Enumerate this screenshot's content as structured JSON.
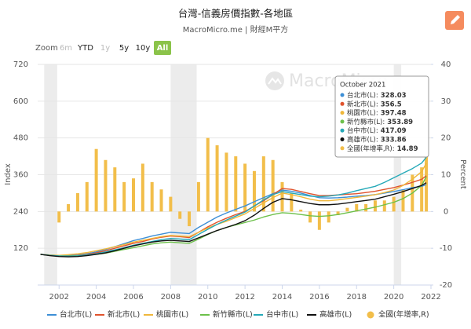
{
  "chart_data": {
    "type": "line",
    "title": "台灣-信義房價指數-各地區",
    "subtitle": "MacroMicro.me | 財經M平方",
    "watermark": "MacroMicro",
    "range_selector": {
      "label": "Zoom",
      "buttons": [
        "6m",
        "YTD",
        "1y",
        "5y",
        "10y",
        "All"
      ],
      "selected": "All",
      "disabled": [
        "6m",
        "1y"
      ]
    },
    "ylabel": "Index",
    "y2label": "Percent",
    "xlim": [
      2000.85,
      2022
    ],
    "xticks": [
      2002,
      2004,
      2006,
      2008,
      2010,
      2012,
      2014,
      2016,
      2018,
      2020,
      2022
    ],
    "ylim": [
      0,
      720
    ],
    "yticks": [
      120,
      240,
      360,
      480,
      600,
      720
    ],
    "y2lim": [
      -20,
      40
    ],
    "y2ticks": [
      -20,
      -10,
      0,
      10,
      20,
      30,
      40
    ],
    "grid": true,
    "legend": "bottom",
    "plot_bands": [
      [
        2001.2,
        2001.9
      ],
      [
        2008.0,
        2009.4
      ],
      [
        2020.0,
        2020.4
      ]
    ],
    "x": [
      2001,
      2001.5,
      2002,
      2002.5,
      2003,
      2003.5,
      2004,
      2004.5,
      2005,
      2005.5,
      2006,
      2006.5,
      2007,
      2007.5,
      2008,
      2008.5,
      2009,
      2009.5,
      2010,
      2010.5,
      2011,
      2011.5,
      2012,
      2012.5,
      2013,
      2013.5,
      2014,
      2014.5,
      2015,
      2015.5,
      2016,
      2016.5,
      2017,
      2017.5,
      2018,
      2018.5,
      2019,
      2019.5,
      2020,
      2020.5,
      2021,
      2021.5,
      2021.75
    ],
    "series": [
      {
        "name": "台北市(L)",
        "color": "#3d8fd6",
        "values": [
          100,
          98,
          96,
          97,
          98,
          102,
          108,
          116,
          125,
          135,
          145,
          152,
          160,
          166,
          172,
          170,
          168,
          188,
          205,
          222,
          235,
          247,
          258,
          272,
          285,
          298,
          310,
          306,
          300,
          292,
          285,
          284,
          285,
          287,
          290,
          292,
          295,
          300,
          305,
          311,
          318,
          322,
          328.03
        ]
      },
      {
        "name": "新北市(L)",
        "color": "#e0532d",
        "values": [
          100,
          97,
          94,
          95,
          97,
          100,
          105,
          112,
          120,
          128,
          136,
          142,
          150,
          156,
          160,
          158,
          155,
          172,
          190,
          205,
          218,
          230,
          240,
          258,
          275,
          295,
          315,
          312,
          305,
          298,
          292,
          292,
          294,
          296,
          298,
          302,
          306,
          312,
          318,
          326,
          335,
          345,
          356.5
        ]
      },
      {
        "name": "桃園市(L)",
        "color": "#efb73b",
        "values": [
          100,
          98,
          97,
          99,
          102,
          106,
          112,
          118,
          125,
          132,
          140,
          146,
          152,
          158,
          162,
          160,
          158,
          172,
          186,
          198,
          208,
          220,
          232,
          250,
          268,
          285,
          300,
          295,
          288,
          280,
          275,
          275,
          278,
          282,
          286,
          290,
          295,
          302,
          310,
          325,
          345,
          370,
          397.48
        ]
      },
      {
        "name": "新竹縣市(L)",
        "color": "#6cc04a",
        "values": [
          100,
          97,
          95,
          95,
          96,
          98,
          100,
          104,
          110,
          116,
          122,
          128,
          134,
          138,
          140,
          138,
          136,
          150,
          165,
          178,
          188,
          196,
          204,
          212,
          222,
          230,
          236,
          234,
          230,
          226,
          224,
          226,
          230,
          236,
          242,
          248,
          254,
          262,
          270,
          282,
          300,
          325,
          353.89
        ]
      },
      {
        "name": "台中市(L)",
        "color": "#25a9b8",
        "values": [
          100,
          97,
          95,
          94,
          95,
          98,
          102,
          108,
          115,
          122,
          130,
          136,
          142,
          148,
          152,
          150,
          148,
          165,
          182,
          198,
          212,
          225,
          238,
          258,
          278,
          295,
          305,
          300,
          295,
          290,
          288,
          290,
          294,
          300,
          308,
          315,
          322,
          335,
          350,
          365,
          380,
          398,
          417.09
        ]
      },
      {
        "name": "高雄市(L)",
        "color": "#111111",
        "values": [
          100,
          96,
          93,
          92,
          93,
          96,
          100,
          105,
          112,
          120,
          128,
          134,
          140,
          144,
          146,
          144,
          142,
          154,
          166,
          178,
          188,
          198,
          210,
          228,
          250,
          270,
          282,
          278,
          272,
          266,
          262,
          262,
          264,
          268,
          272,
          276,
          280,
          288,
          296,
          305,
          315,
          325,
          333.86
        ]
      },
      {
        "name": "全國(年增率,R)",
        "color": "#f2be4a",
        "type": "bar",
        "axis": "y2",
        "values": [
          null,
          null,
          -3,
          2,
          5,
          8,
          17,
          14,
          12,
          8,
          9,
          13,
          8,
          6,
          4,
          -2,
          -4,
          8,
          20,
          18,
          16,
          15,
          13,
          11,
          15,
          14,
          8,
          5,
          0.5,
          -3,
          -5,
          -3,
          -1,
          1,
          2,
          2,
          3,
          3,
          4,
          6,
          10,
          12,
          14.89
        ]
      }
    ],
    "tooltip": {
      "title": "October 2021",
      "index": 42
    }
  }
}
